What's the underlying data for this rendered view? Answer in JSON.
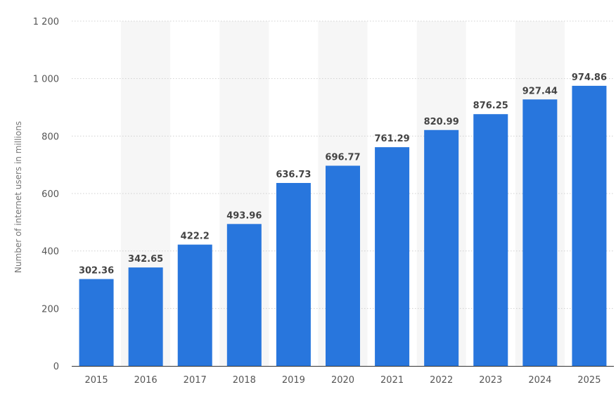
{
  "chart_data": {
    "type": "bar",
    "title": "",
    "xlabel": "",
    "ylabel": "Number of internet users in millions",
    "categories": [
      "2015",
      "2016",
      "2017",
      "2018",
      "2019",
      "2020",
      "2021",
      "2022",
      "2023",
      "2024",
      "2025"
    ],
    "values": [
      302.36,
      342.65,
      422.2,
      493.96,
      636.73,
      696.77,
      761.29,
      820.99,
      876.25,
      927.44,
      974.86
    ],
    "data_labels": [
      "302.36",
      "342.65",
      "422.2",
      "493.96",
      "636.73",
      "696.77",
      "761.29",
      "820.99",
      "876.25",
      "927.44",
      "974.86"
    ],
    "ylim": [
      0,
      1200
    ],
    "yticks": [
      0,
      200,
      400,
      600,
      800,
      1000,
      1200
    ],
    "ytick_labels": [
      "0",
      "200",
      "400",
      "600",
      "800",
      "1 000",
      "1 200"
    ],
    "grid": "horizontal-dotted",
    "alternating_column_bands": true,
    "legend": "none",
    "colors": {
      "bar": "#2876dd",
      "band": "#f6f6f6",
      "grid": "#d0d0d0",
      "axis": "#333333"
    }
  }
}
